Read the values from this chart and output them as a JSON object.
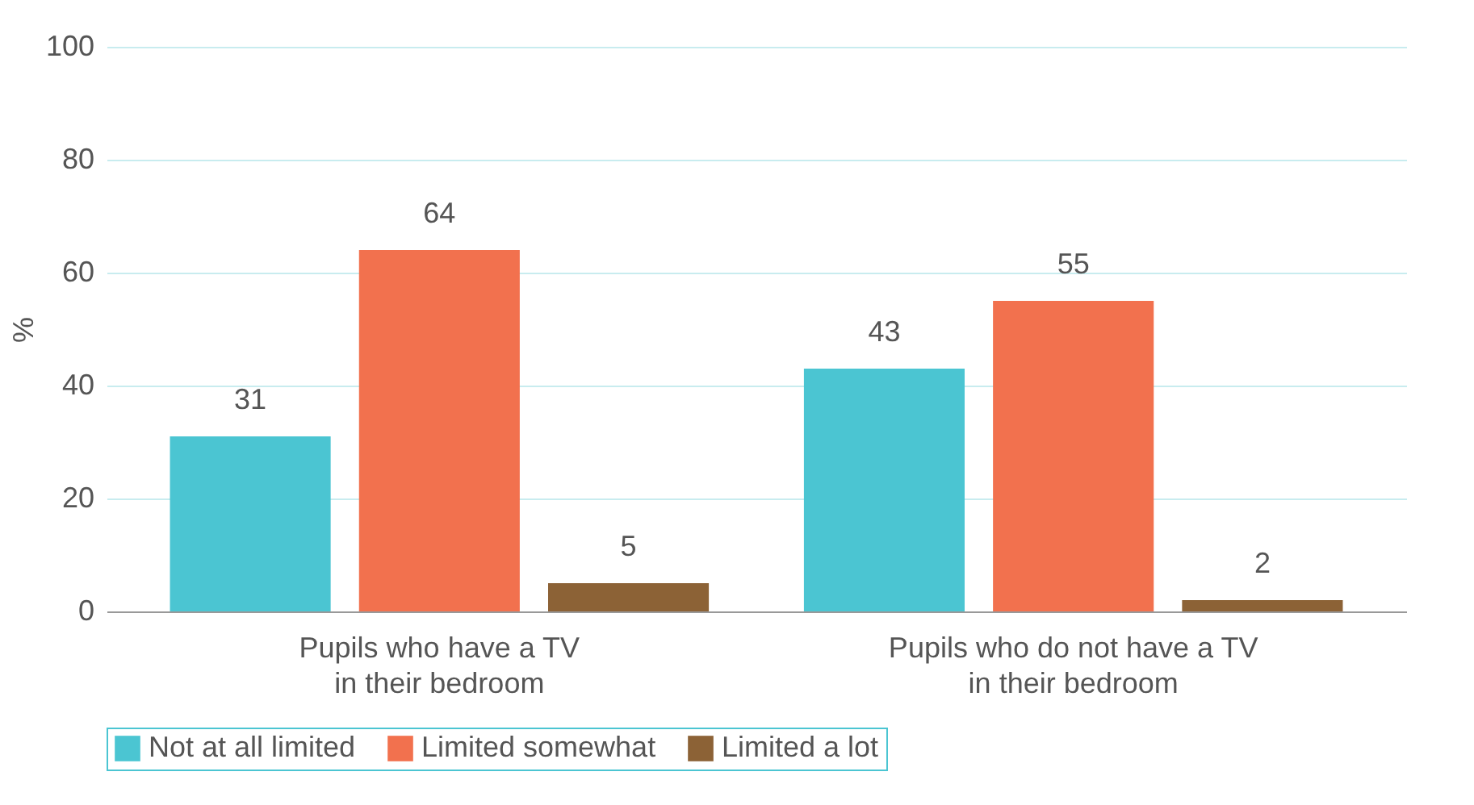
{
  "chart_data": {
    "type": "bar",
    "ylabel": "%",
    "categories": [
      "Pupils who have a TV\nin their bedroom",
      "Pupils who do not have a TV\nin their bedroom"
    ],
    "series": [
      {
        "name": "Not at all limited",
        "color": "#4bc5d2",
        "values": [
          31,
          43
        ]
      },
      {
        "name": "Limited somewhat",
        "color": "#f2714e",
        "values": [
          64,
          55
        ]
      },
      {
        "name": "Limited a lot",
        "color": "#8c6236",
        "values": [
          5,
          2
        ]
      }
    ],
    "ylim": [
      0,
      100
    ],
    "yticks": [
      0,
      20,
      40,
      60,
      80,
      100
    ],
    "grid": "y",
    "legend": "bottom",
    "data_labels": true
  }
}
